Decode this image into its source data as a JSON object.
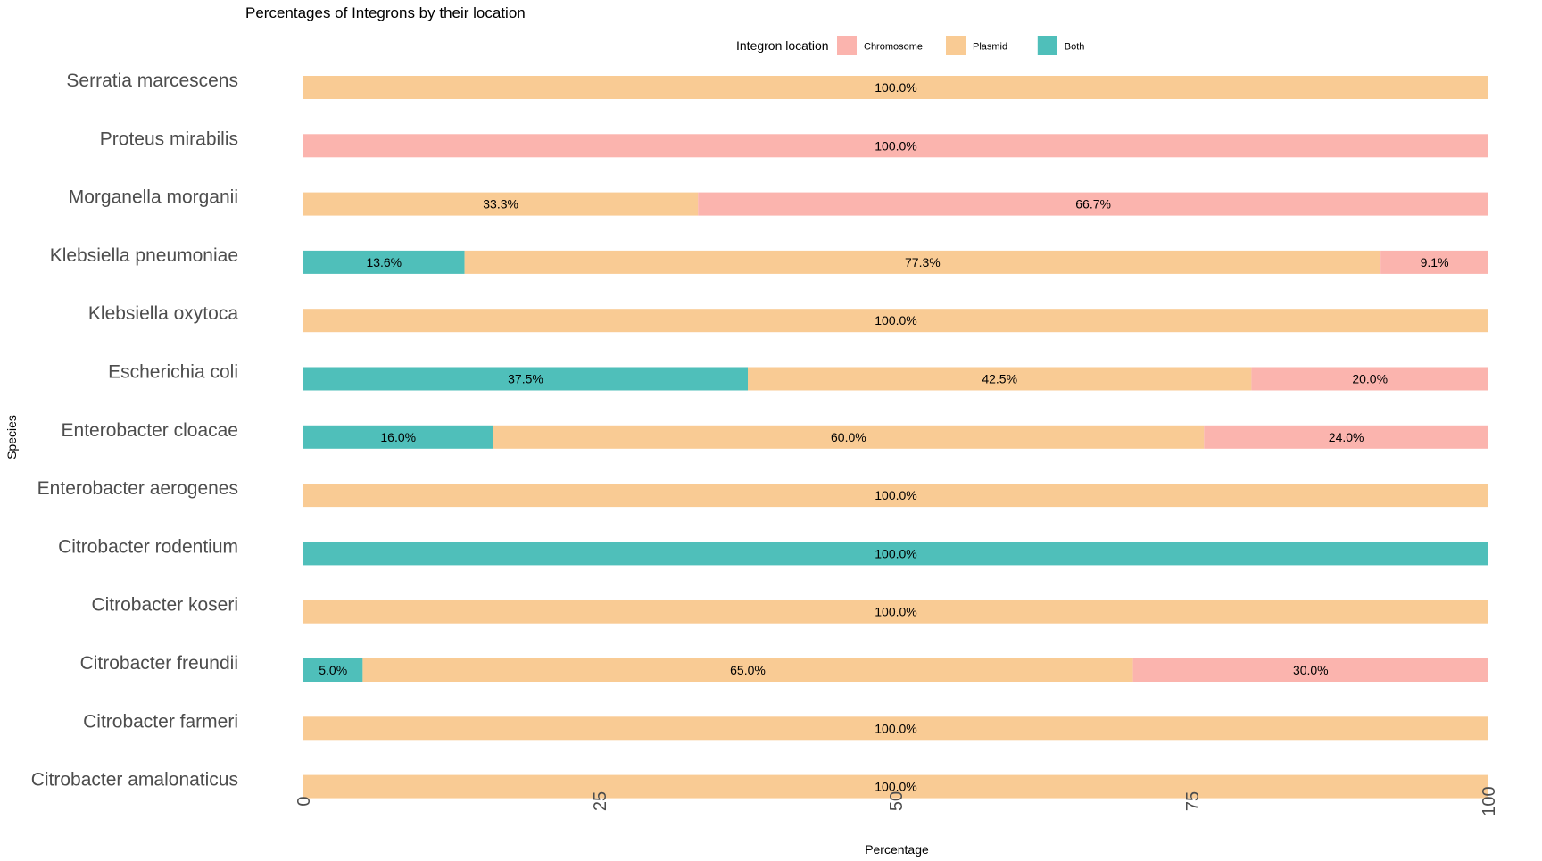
{
  "chart_data": {
    "type": "bar",
    "orientation": "horizontal",
    "stacked": true,
    "title": "Percentages of Integrons by their location",
    "xlabel": "Percentage",
    "ylabel": "Species",
    "xlim": [
      0,
      100
    ],
    "x_ticks": [
      0,
      25,
      50,
      75,
      100
    ],
    "grid": false,
    "legend": {
      "title": "Integron location",
      "position": "top",
      "entries": [
        {
          "name": "Chromosome",
          "color": "#fbb4ae"
        },
        {
          "name": "Plasmid",
          "color": "#f9cb94"
        },
        {
          "name": "Both",
          "color": "#4fbfba"
        }
      ]
    },
    "stack_order": [
      "Both",
      "Plasmid",
      "Chromosome"
    ],
    "categories": [
      "Serratia marcescens",
      "Proteus mirabilis",
      "Morganella morganii",
      "Klebsiella pneumoniae",
      "Klebsiella oxytoca",
      "Escherichia coli",
      "Enterobacter cloacae",
      "Enterobacter aerogenes",
      "Citrobacter rodentium",
      "Citrobacter koseri",
      "Citrobacter freundii",
      "Citrobacter farmeri",
      "Citrobacter amalonaticus"
    ],
    "series": [
      {
        "name": "Both",
        "color": "#4fbfba",
        "values": [
          0,
          0,
          0,
          13.6,
          0,
          37.5,
          16.0,
          0,
          100.0,
          0,
          5.0,
          0,
          0
        ],
        "labels": [
          "",
          "",
          "",
          "13.6%",
          "",
          "37.5%",
          "16.0%",
          "",
          "100.0%",
          "",
          "5.0%",
          "",
          ""
        ]
      },
      {
        "name": "Plasmid",
        "color": "#f9cb94",
        "values": [
          100.0,
          0,
          33.3,
          77.3,
          100.0,
          42.5,
          60.0,
          100.0,
          0,
          100.0,
          65.0,
          100.0,
          100.0
        ],
        "labels": [
          "100.0%",
          "",
          "33.3%",
          "77.3%",
          "100.0%",
          "42.5%",
          "60.0%",
          "100.0%",
          "",
          "100.0%",
          "65.0%",
          "100.0%",
          "100.0%"
        ]
      },
      {
        "name": "Chromosome",
        "color": "#fbb4ae",
        "values": [
          0,
          100.0,
          66.7,
          9.1,
          0,
          20.0,
          24.0,
          0,
          0,
          0,
          30.0,
          0,
          0
        ],
        "labels": [
          "",
          "100.0%",
          "66.7%",
          "9.1%",
          "",
          "20.0%",
          "24.0%",
          "",
          "",
          "",
          "30.0%",
          "",
          ""
        ]
      }
    ]
  }
}
